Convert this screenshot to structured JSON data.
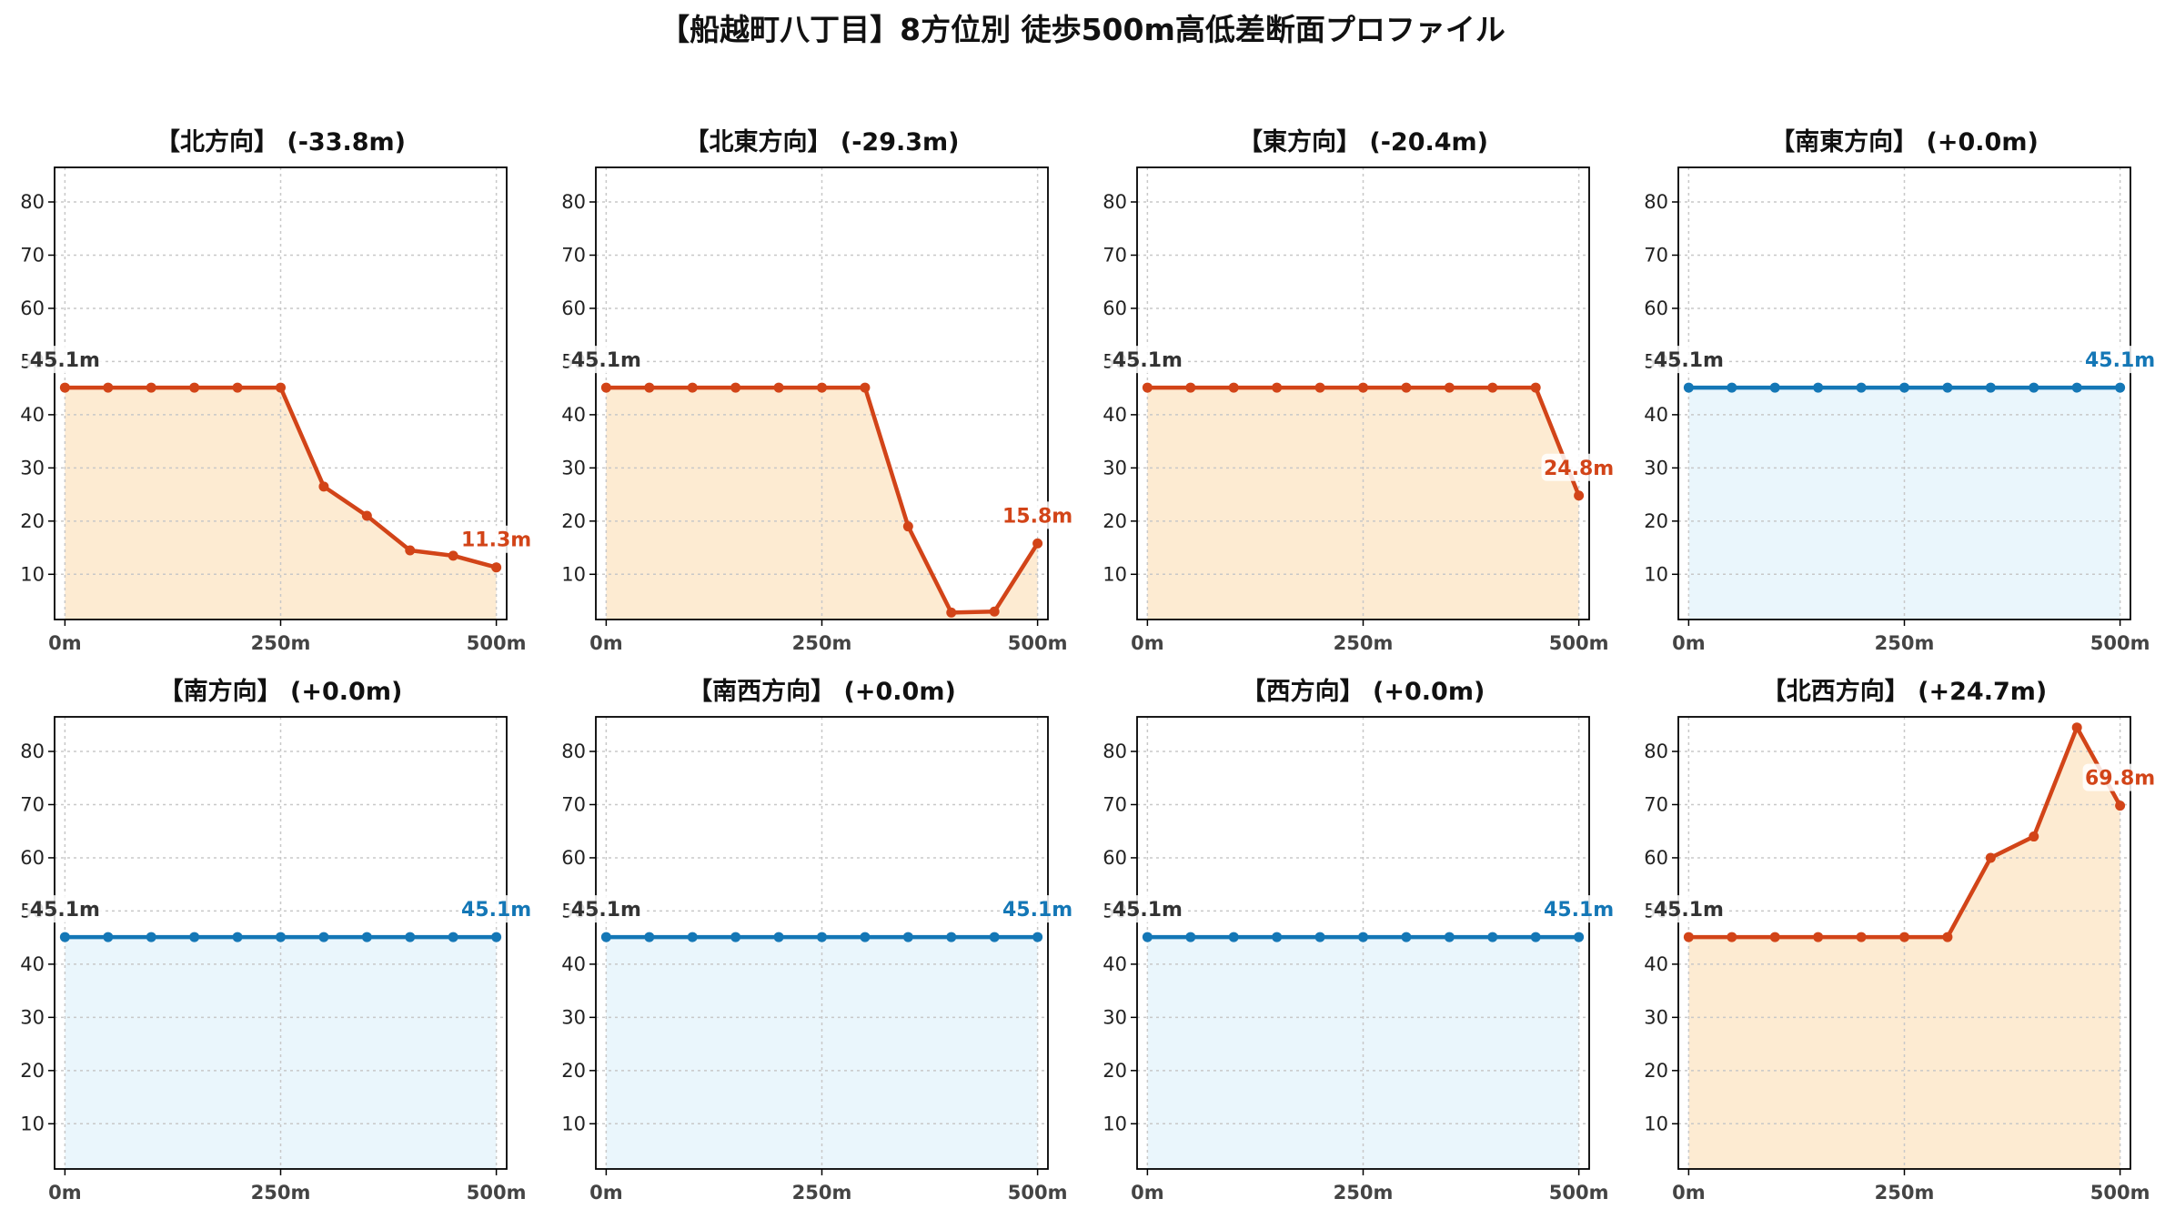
{
  "title": "【船越町八丁目】8方位別 徒歩500m高低差断面プロファイル",
  "colors": {
    "down_line": "#d24418",
    "down_fill": "#fdebd2",
    "flat_line": "#1477b6",
    "flat_fill": "#eaf6fc",
    "start_label": "#333333",
    "grid": "#c8c8c8"
  },
  "chart_data": [
    {
      "type": "line",
      "title": "【北方向】 (-33.8m)",
      "trend": "change",
      "x": [
        0,
        50,
        100,
        150,
        200,
        250,
        300,
        350,
        400,
        450,
        500
      ],
      "y": [
        45.1,
        45.1,
        45.1,
        45.1,
        45.1,
        45.1,
        26.5,
        21.0,
        14.5,
        13.5,
        11.3
      ],
      "xticks": [
        "0m",
        "250m",
        "500m"
      ],
      "yticks": [
        "10",
        "20",
        "30",
        "40",
        "50",
        "60",
        "70",
        "80"
      ],
      "start_label": "45.1m",
      "end_label": "11.3m",
      "xlim": [
        -12,
        512
      ],
      "ylim": [
        1.5,
        86.5
      ],
      "grid": true
    },
    {
      "type": "line",
      "title": "【北東方向】 (-29.3m)",
      "trend": "change",
      "x": [
        0,
        50,
        100,
        150,
        200,
        250,
        300,
        350,
        400,
        450,
        500
      ],
      "y": [
        45.1,
        45.1,
        45.1,
        45.1,
        45.1,
        45.1,
        45.1,
        19.0,
        2.8,
        3.0,
        15.8
      ],
      "xticks": [
        "0m",
        "250m",
        "500m"
      ],
      "yticks": [
        "10",
        "20",
        "30",
        "40",
        "50",
        "60",
        "70",
        "80"
      ],
      "start_label": "45.1m",
      "end_label": "15.8m",
      "xlim": [
        -12,
        512
      ],
      "ylim": [
        1.5,
        86.5
      ],
      "grid": true
    },
    {
      "type": "line",
      "title": "【東方向】 (-20.4m)",
      "trend": "change",
      "x": [
        0,
        50,
        100,
        150,
        200,
        250,
        300,
        350,
        400,
        450,
        500
      ],
      "y": [
        45.1,
        45.1,
        45.1,
        45.1,
        45.1,
        45.1,
        45.1,
        45.1,
        45.1,
        45.1,
        24.8
      ],
      "xticks": [
        "0m",
        "250m",
        "500m"
      ],
      "yticks": [
        "10",
        "20",
        "30",
        "40",
        "50",
        "60",
        "70",
        "80"
      ],
      "start_label": "45.1m",
      "end_label": "24.8m",
      "xlim": [
        -12,
        512
      ],
      "ylim": [
        1.5,
        86.5
      ],
      "grid": true
    },
    {
      "type": "line",
      "title": "【南東方向】 (+0.0m)",
      "trend": "flat",
      "x": [
        0,
        50,
        100,
        150,
        200,
        250,
        300,
        350,
        400,
        450,
        500
      ],
      "y": [
        45.1,
        45.1,
        45.1,
        45.1,
        45.1,
        45.1,
        45.1,
        45.1,
        45.1,
        45.1,
        45.1
      ],
      "xticks": [
        "0m",
        "250m",
        "500m"
      ],
      "yticks": [
        "10",
        "20",
        "30",
        "40",
        "50",
        "60",
        "70",
        "80"
      ],
      "start_label": "45.1m",
      "end_label": "45.1m",
      "xlim": [
        -12,
        512
      ],
      "ylim": [
        1.5,
        86.5
      ],
      "grid": true
    },
    {
      "type": "line",
      "title": "【南方向】 (+0.0m)",
      "trend": "flat",
      "x": [
        0,
        50,
        100,
        150,
        200,
        250,
        300,
        350,
        400,
        450,
        500
      ],
      "y": [
        45.1,
        45.1,
        45.1,
        45.1,
        45.1,
        45.1,
        45.1,
        45.1,
        45.1,
        45.1,
        45.1
      ],
      "xticks": [
        "0m",
        "250m",
        "500m"
      ],
      "yticks": [
        "10",
        "20",
        "30",
        "40",
        "50",
        "60",
        "70",
        "80"
      ],
      "start_label": "45.1m",
      "end_label": "45.1m",
      "xlim": [
        -12,
        512
      ],
      "ylim": [
        1.5,
        86.5
      ],
      "grid": true
    },
    {
      "type": "line",
      "title": "【南西方向】 (+0.0m)",
      "trend": "flat",
      "x": [
        0,
        50,
        100,
        150,
        200,
        250,
        300,
        350,
        400,
        450,
        500
      ],
      "y": [
        45.1,
        45.1,
        45.1,
        45.1,
        45.1,
        45.1,
        45.1,
        45.1,
        45.1,
        45.1,
        45.1
      ],
      "xticks": [
        "0m",
        "250m",
        "500m"
      ],
      "yticks": [
        "10",
        "20",
        "30",
        "40",
        "50",
        "60",
        "70",
        "80"
      ],
      "start_label": "45.1m",
      "end_label": "45.1m",
      "xlim": [
        -12,
        512
      ],
      "ylim": [
        1.5,
        86.5
      ],
      "grid": true
    },
    {
      "type": "line",
      "title": "【西方向】 (+0.0m)",
      "trend": "flat",
      "x": [
        0,
        50,
        100,
        150,
        200,
        250,
        300,
        350,
        400,
        450,
        500
      ],
      "y": [
        45.1,
        45.1,
        45.1,
        45.1,
        45.1,
        45.1,
        45.1,
        45.1,
        45.1,
        45.1,
        45.1
      ],
      "xticks": [
        "0m",
        "250m",
        "500m"
      ],
      "yticks": [
        "10",
        "20",
        "30",
        "40",
        "50",
        "60",
        "70",
        "80"
      ],
      "start_label": "45.1m",
      "end_label": "45.1m",
      "xlim": [
        -12,
        512
      ],
      "ylim": [
        1.5,
        86.5
      ],
      "grid": true
    },
    {
      "type": "line",
      "title": "【北西方向】 (+24.7m)",
      "trend": "change",
      "x": [
        0,
        50,
        100,
        150,
        200,
        250,
        300,
        350,
        400,
        450,
        500
      ],
      "y": [
        45.1,
        45.1,
        45.1,
        45.1,
        45.1,
        45.1,
        45.1,
        60.0,
        64.0,
        84.5,
        69.8
      ],
      "xticks": [
        "0m",
        "250m",
        "500m"
      ],
      "yticks": [
        "10",
        "20",
        "30",
        "40",
        "50",
        "60",
        "70",
        "80"
      ],
      "start_label": "45.1m",
      "end_label": "69.8m",
      "xlim": [
        -12,
        512
      ],
      "ylim": [
        1.5,
        86.5
      ],
      "grid": true
    }
  ]
}
